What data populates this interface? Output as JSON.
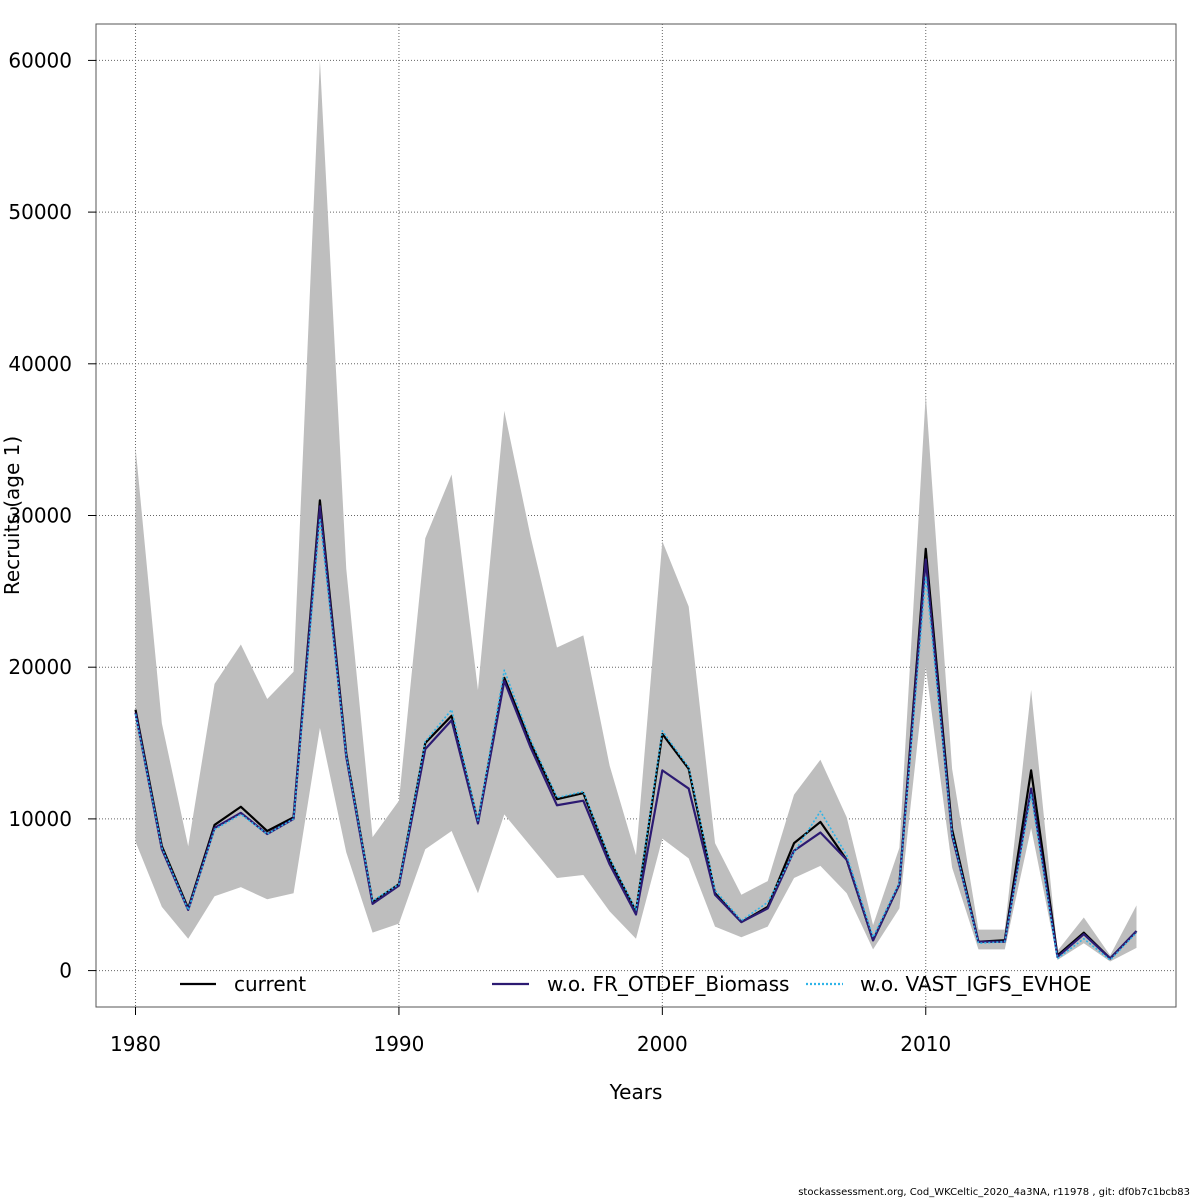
{
  "chart_data": {
    "type": "line",
    "title": "",
    "xlabel": "Years",
    "ylabel": "Recruits (age 1)",
    "xlim": [
      1978.5,
      2019.5
    ],
    "ylim": [
      -2400,
      62400
    ],
    "x_ticks": [
      1980,
      1990,
      2000,
      2010
    ],
    "y_ticks": [
      0,
      10000,
      20000,
      30000,
      40000,
      50000,
      60000
    ],
    "grid": true,
    "legend_position": "bottom",
    "x": [
      1980,
      1981,
      1982,
      1983,
      1984,
      1985,
      1986,
      1987,
      1988,
      1989,
      1990,
      1991,
      1992,
      1993,
      1994,
      1995,
      1996,
      1997,
      1998,
      1999,
      2000,
      2001,
      2002,
      2003,
      2004,
      2005,
      2006,
      2007,
      2008,
      2009,
      2010,
      2011,
      2012,
      2013,
      2014,
      2015,
      2016,
      2017,
      2018
    ],
    "confidence_band": {
      "color": "#bebebe",
      "upper": [
        34500,
        16300,
        8200,
        18900,
        21500,
        17900,
        19700,
        60000,
        26500,
        8800,
        11200,
        28500,
        32700,
        18500,
        36900,
        28600,
        21300,
        22100,
        13500,
        7600,
        28300,
        24000,
        8400,
        5000,
        5900,
        11600,
        13900,
        10100,
        3000,
        8100,
        38000,
        13300,
        2700,
        2700,
        18500,
        1300,
        3500,
        1000,
        4300
      ],
      "lower": [
        8500,
        4200,
        2100,
        4900,
        5500,
        4700,
        5100,
        16000,
        7800,
        2500,
        3100,
        8000,
        9200,
        5100,
        10300,
        8200,
        6100,
        6300,
        3900,
        2100,
        8700,
        7400,
        2900,
        2200,
        2900,
        6100,
        6900,
        5100,
        1400,
        4100,
        20000,
        6800,
        1400,
        1400,
        9400,
        700,
        1800,
        600,
        1500
      ]
    },
    "series": [
      {
        "name": "current",
        "color": "#000000",
        "line_style": "solid",
        "values": [
          17200,
          8200,
          4100,
          9600,
          10800,
          9200,
          10100,
          31000,
          14300,
          4500,
          5700,
          15000,
          16800,
          9800,
          19300,
          15000,
          11300,
          11700,
          7300,
          3900,
          15600,
          13300,
          5100,
          3200,
          4200,
          8400,
          9800,
          7300,
          2000,
          5700,
          27800,
          9300,
          1900,
          2000,
          13200,
          1000,
          2500,
          800,
          2600
        ]
      },
      {
        "name": "w.o. FR_OTDEF_Biomass",
        "color": "#2c1a72",
        "line_style": "solid",
        "values": [
          17000,
          8000,
          4000,
          9400,
          10400,
          9000,
          10000,
          30600,
          14100,
          4400,
          5600,
          14600,
          16500,
          9700,
          19100,
          14700,
          10900,
          11200,
          7000,
          3700,
          13200,
          12000,
          5000,
          3200,
          4100,
          7900,
          9100,
          7300,
          2000,
          5700,
          27100,
          8900,
          1900,
          1900,
          12000,
          900,
          2400,
          800,
          2600
        ]
      },
      {
        "name": "w.o. VAST_IGFS_EVHOE",
        "color": "#2fb4e8",
        "line_style": "dotted",
        "values": [
          16900,
          8100,
          4000,
          9300,
          10300,
          9000,
          10000,
          29800,
          14200,
          4600,
          5700,
          15100,
          17200,
          9900,
          19800,
          15200,
          11400,
          11800,
          7400,
          4000,
          15800,
          13400,
          5300,
          3300,
          4500,
          7800,
          10500,
          7600,
          2200,
          5800,
          26000,
          9000,
          1800,
          1900,
          11600,
          800,
          2100,
          700,
          2500
        ]
      }
    ]
  },
  "footer": "stockassessment.org, Cod_WKCeltic_2020_4a3NA, r11978 , git: df0b7c1bcb83"
}
